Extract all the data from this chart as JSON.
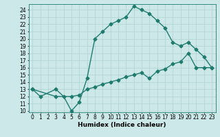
{
  "xlabel": "Humidex (Indice chaleur)",
  "xlim": [
    -0.5,
    23.5
  ],
  "ylim": [
    9.8,
    24.8
  ],
  "yticks": [
    10,
    11,
    12,
    13,
    14,
    15,
    16,
    17,
    18,
    19,
    20,
    21,
    22,
    23,
    24
  ],
  "xticks": [
    0,
    1,
    2,
    3,
    4,
    5,
    6,
    7,
    8,
    9,
    10,
    11,
    12,
    13,
    14,
    15,
    16,
    17,
    18,
    19,
    20,
    21,
    22,
    23
  ],
  "background_color": "#cde8e8",
  "grid_color": "#a8cccc",
  "line_color": "#1e7b6e",
  "curve1_x": [
    0,
    1,
    3,
    4,
    5,
    6,
    7,
    8,
    9,
    10,
    11,
    12,
    13,
    14,
    15,
    16,
    17,
    18,
    19,
    20,
    21,
    22,
    23
  ],
  "curve1_y": [
    13,
    12,
    13,
    12,
    10,
    11.2,
    14.5,
    20,
    21,
    22,
    22.5,
    23,
    24.5,
    24,
    23.5,
    22.5,
    21.5,
    19.5,
    19,
    19.5,
    18.5,
    17.5,
    16
  ],
  "curve2_x": [
    0,
    3,
    5,
    6,
    7,
    8,
    9,
    10,
    11,
    12,
    13,
    14,
    15,
    16,
    17,
    18,
    19,
    20,
    21,
    22,
    23
  ],
  "curve2_y": [
    13,
    12,
    12,
    12.2,
    13.0,
    13.3,
    13.7,
    14.0,
    14.3,
    14.7,
    15.0,
    15.3,
    14.5,
    15.5,
    15.8,
    16.5,
    16.8,
    18.0,
    16.0,
    16.0,
    16.0
  ],
  "marker_size": 2.5,
  "line_width": 1.0,
  "tick_fontsize": 5.5,
  "label_fontsize": 6.5
}
